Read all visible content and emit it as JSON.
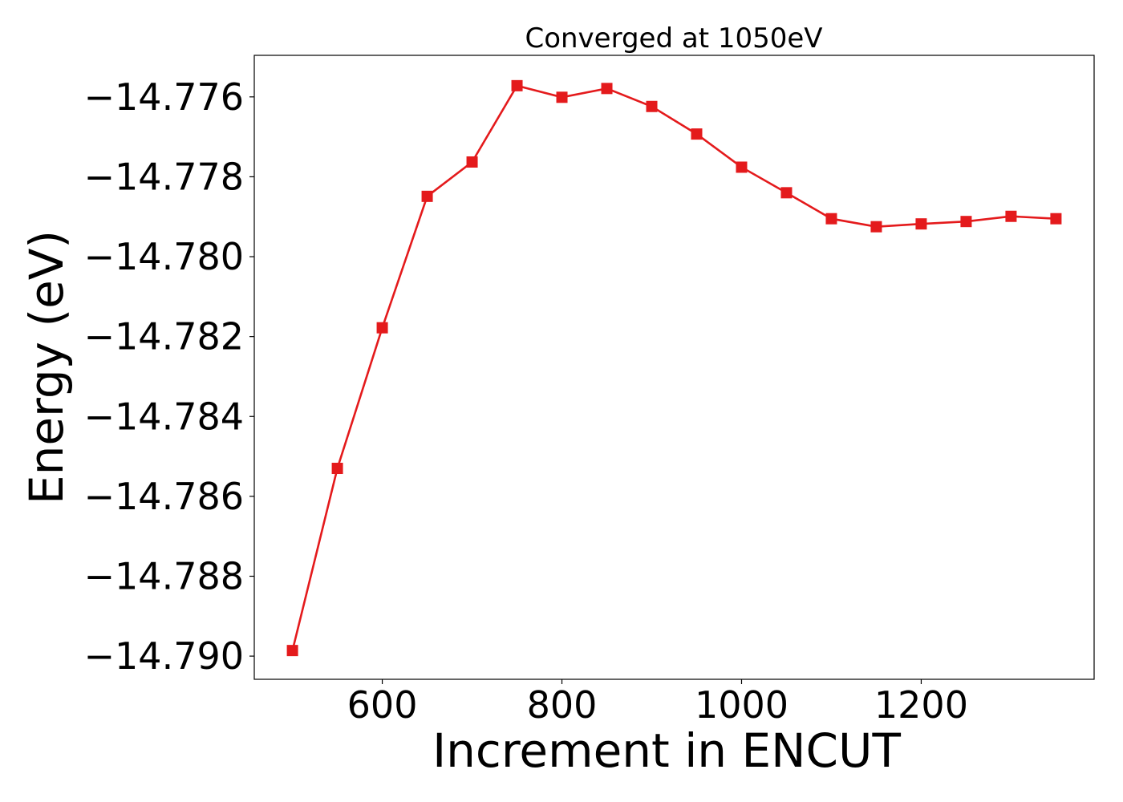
{
  "chart_data": {
    "type": "line",
    "title": "Converged at 1050eV",
    "xlabel": "Increment in ENCUT",
    "ylabel": "Energy (eV)",
    "x": [
      500,
      550,
      600,
      650,
      700,
      750,
      800,
      850,
      900,
      950,
      1000,
      1050,
      1100,
      1150,
      1200,
      1250,
      1300,
      1350
    ],
    "series": [
      {
        "values": [
          -14.78986,
          -14.7853,
          -14.78178,
          -14.77849,
          -14.77763,
          -14.77572,
          -14.77601,
          -14.77579,
          -14.77624,
          -14.77693,
          -14.77776,
          -14.7784,
          -14.77905,
          -14.77925,
          -14.77918,
          -14.77912,
          -14.77899,
          -14.77905
        ],
        "color": "#e41a1c",
        "marker": "square"
      }
    ],
    "xlim": [
      457.5,
      1392.5
    ],
    "ylim": [
      -14.79058,
      -14.77496
    ],
    "xticks": [
      600,
      800,
      1000,
      1200
    ],
    "xtick_labels": [
      "600",
      "800",
      "1000",
      "1200"
    ],
    "yticks": [
      -14.776,
      -14.778,
      -14.78,
      -14.782,
      -14.784,
      -14.786,
      -14.788,
      -14.79
    ],
    "ytick_labels": [
      "−14.776",
      "−14.778",
      "−14.780",
      "−14.782",
      "−14.784",
      "−14.786",
      "−14.788",
      "−14.790"
    ],
    "grid": false,
    "legend": "none"
  }
}
